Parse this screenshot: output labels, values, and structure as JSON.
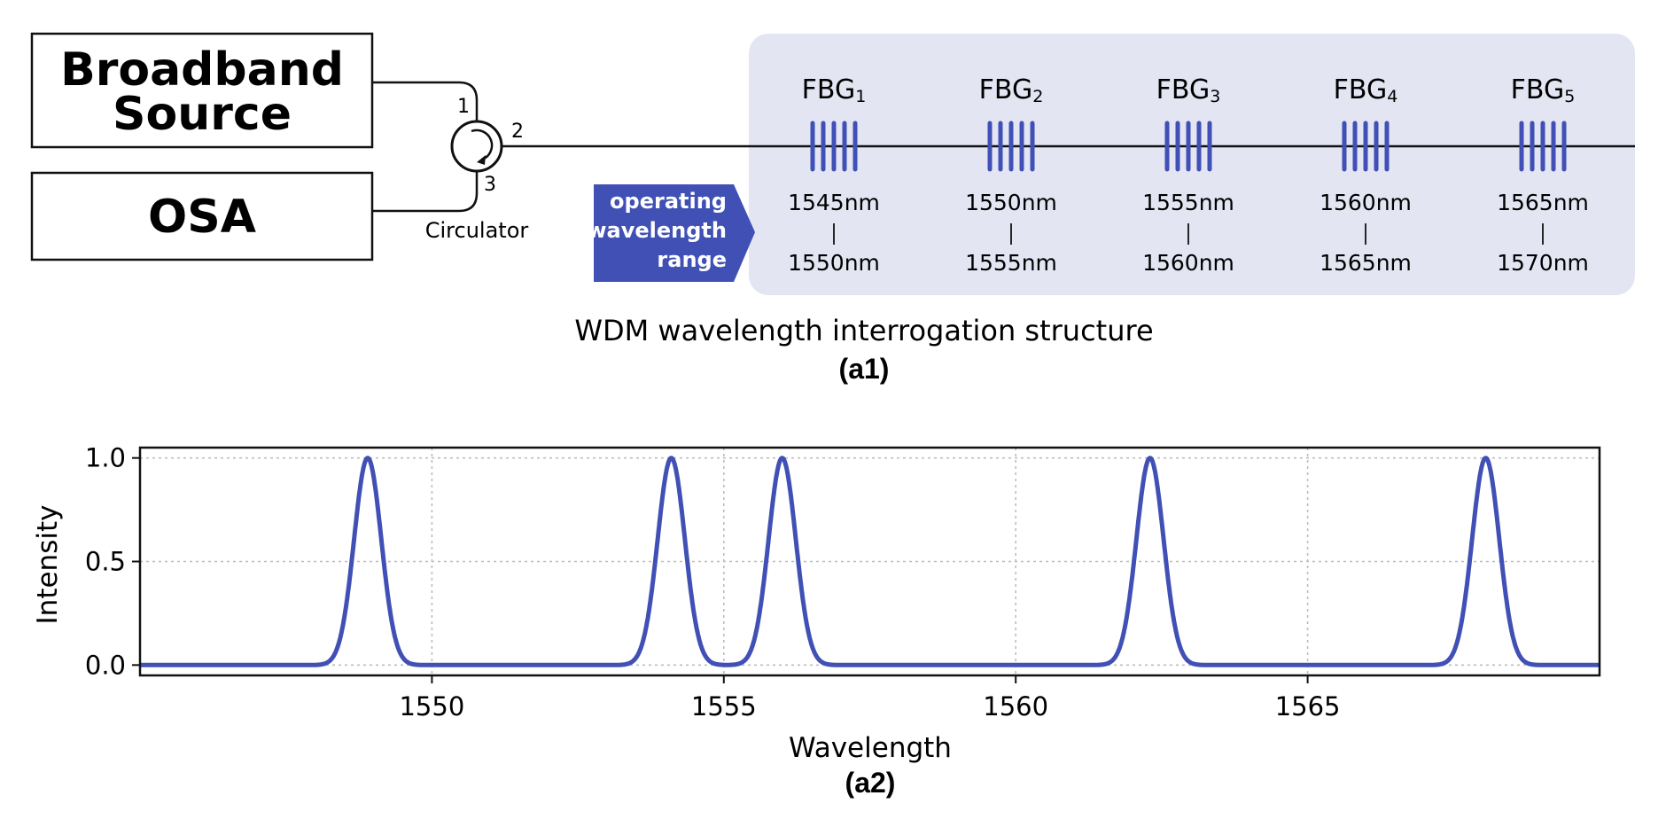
{
  "diagram": {
    "source_label_line1": "Broadband",
    "source_label_line2": "Source",
    "osa_label": "OSA",
    "circulator_label": "Circulator",
    "port1": "1",
    "port2": "2",
    "port3": "3",
    "range_tag_line1": "operating",
    "range_tag_line2": "wavelength",
    "range_tag_line3": "range",
    "gratings": [
      {
        "name": "FBG",
        "sub": "1",
        "range_start": "1545nm",
        "range_end": "1550nm"
      },
      {
        "name": "FBG",
        "sub": "2",
        "range_start": "1550nm",
        "range_end": "1555nm"
      },
      {
        "name": "FBG",
        "sub": "3",
        "range_start": "1555nm",
        "range_end": "1560nm"
      },
      {
        "name": "FBG",
        "sub": "4",
        "range_start": "1560nm",
        "range_end": "1565nm"
      },
      {
        "name": "FBG",
        "sub": "5",
        "range_start": "1565nm",
        "range_end": "1570nm"
      }
    ],
    "caption": "WDM wavelength interrogation structure",
    "caption_tag": "(a1)",
    "colors": {
      "accent": "#4050b5",
      "panel": "#e3e5f3",
      "line": "#111111"
    }
  },
  "chart_data": {
    "type": "line",
    "xlabel": "Wavelength",
    "ylabel": "Intensity",
    "caption_tag": "(a2)",
    "xlim": [
      1545,
      1570
    ],
    "ylim": [
      -0.05,
      1.05
    ],
    "xticks": [
      1550,
      1555,
      1560,
      1565
    ],
    "yticks": [
      0.0,
      0.5,
      1.0
    ],
    "ytick_labels": [
      "0.0",
      "0.5",
      "1.0"
    ],
    "grid": true,
    "series": [
      {
        "peaks": [
          1548.9,
          1554.1,
          1556.0,
          1562.3,
          1568.05
        ],
        "peak_value": 1.0,
        "fwhm_nm": 0.55,
        "color": "#4050b5"
      }
    ]
  }
}
